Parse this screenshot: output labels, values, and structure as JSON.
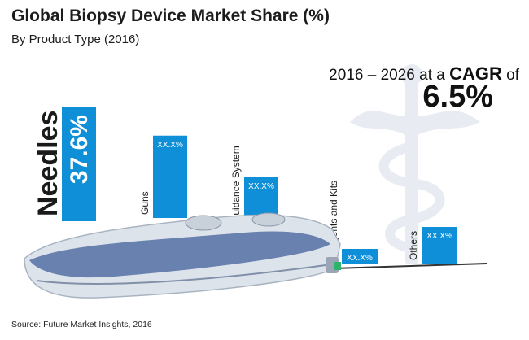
{
  "title": "Global Biopsy Device Market Share (%)",
  "subtitle": "By Product Type (2016)",
  "cagr": {
    "years": "2016 – 2026",
    "mid": " at a ",
    "label": "CAGR",
    "of": " of",
    "value": "6.5%"
  },
  "source": "Source: Future Market Insights, 2016",
  "colors": {
    "bar": "#0e8fd8",
    "bar_text": "#ffffff",
    "label_text": "#1a1a1a",
    "device_body": "#dde3ea",
    "device_accent": "#5b76a8",
    "tip": "#2db36a"
  },
  "chart_data": {
    "type": "bar",
    "categories": [
      "Needles",
      "Guns",
      "Guidance System",
      "Reagents and Kits",
      "Others"
    ],
    "values": [
      37.6,
      null,
      null,
      null,
      null
    ],
    "data_labels": [
      "37.6%",
      "XX.X%",
      "XX.X%",
      "XX.X%",
      "XX.X%"
    ],
    "approx_heights": [
      37.6,
      27,
      16,
      2,
      12
    ],
    "ylim": [
      0,
      40
    ],
    "grid": false,
    "legend": "none",
    "title": "Global Biopsy Device Market Share (%)"
  }
}
